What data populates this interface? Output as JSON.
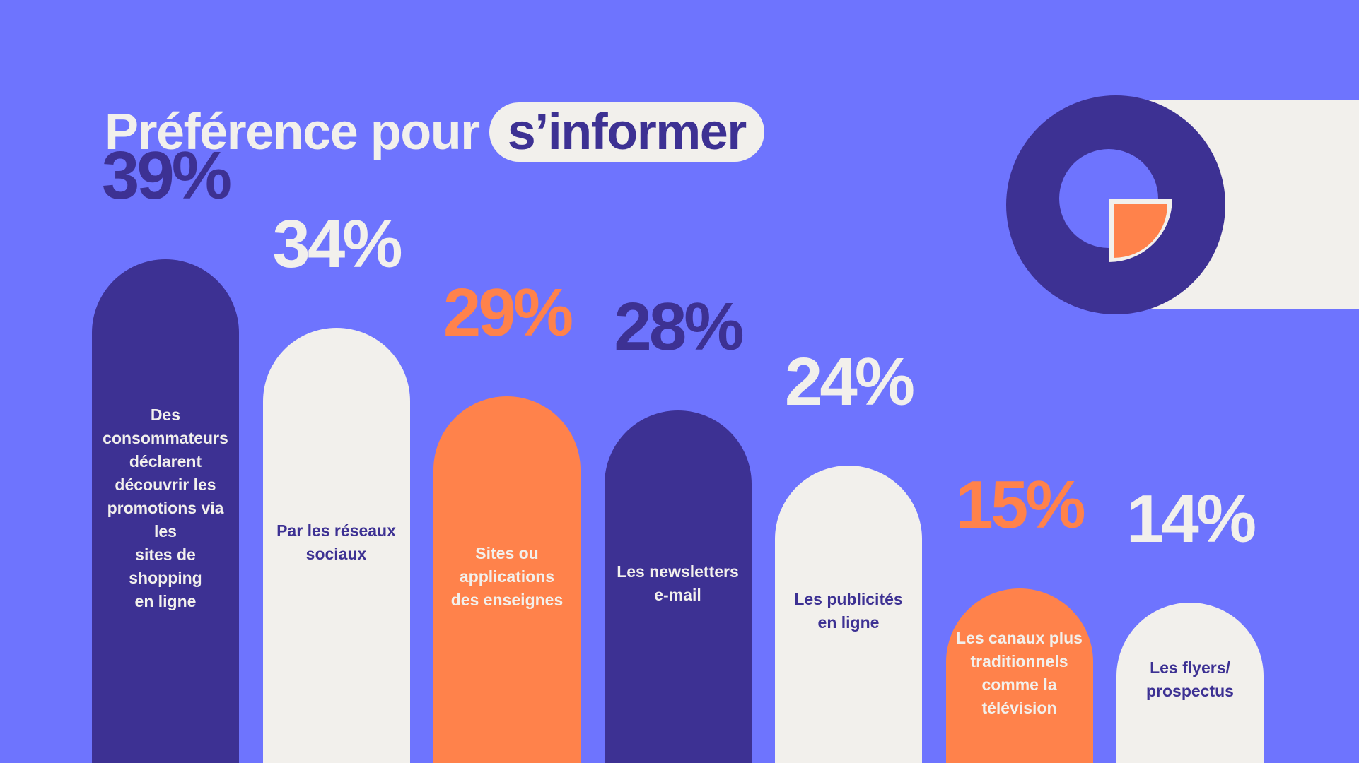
{
  "title": {
    "prefix": "Préférence pour",
    "highlight": "s’informer"
  },
  "colors": {
    "background": "#6E74FE",
    "navy": "#3D3193",
    "cream": "#F2F0EC",
    "orange": "#FF824B"
  },
  "chart_data": {
    "type": "bar",
    "unit": "%",
    "ylim": [
      0,
      39
    ],
    "categories": [
      "Des consommateurs déclarent découvrir les promotions via les sites de shopping en ligne",
      "Par les réseaux sociaux",
      "Sites ou applications des enseignes",
      "Les newsletters e-mail",
      "Les publicités en ligne",
      "Les canaux plus traditionnels comme la télévision",
      "Les flyers/ prospectus"
    ],
    "values": [
      39,
      34,
      29,
      28,
      24,
      15,
      14
    ],
    "value_labels": [
      "39%",
      "34%",
      "29%",
      "28%",
      "24%",
      "15%",
      "14%"
    ],
    "bar_colors": [
      "#3D3193",
      "#F2F0EC",
      "#FF824B",
      "#3D3193",
      "#F2F0EC",
      "#FF824B",
      "#F2F0EC"
    ],
    "label_colors": [
      "#F2F0EC",
      "#3D3193",
      "#F2F0EC",
      "#F2F0EC",
      "#3D3193",
      "#F2F0EC",
      "#3D3193"
    ],
    "value_label_colors": [
      "#3D3193",
      "#F2F0EC",
      "#FF824B",
      "#3D3193",
      "#F2F0EC",
      "#FF824B",
      "#F2F0EC"
    ],
    "label_lines": [
      [
        "Des",
        "consommateurs",
        "déclarent",
        "découvrir les",
        "promotions via les",
        "sites de shopping",
        "en ligne"
      ],
      [
        "Par les réseaux",
        "sociaux"
      ],
      [
        "Sites ou",
        "applications",
        "des enseignes"
      ],
      [
        "Les newsletters",
        "e-mail"
      ],
      [
        "Les publicités",
        "en ligne"
      ],
      [
        "Les canaux plus",
        "traditionnels",
        "comme la",
        "télévision"
      ],
      [
        "Les flyers/",
        "prospectus"
      ]
    ]
  },
  "decoration": {
    "icon": "donut-pie-icon"
  }
}
